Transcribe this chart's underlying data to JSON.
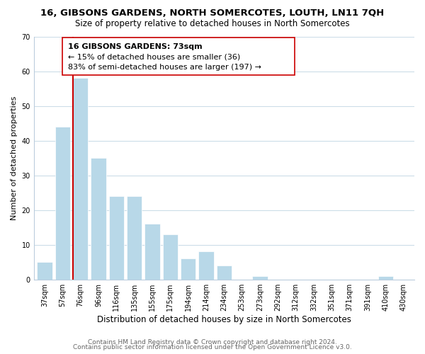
{
  "title": "16, GIBSONS GARDENS, NORTH SOMERCOTES, LOUTH, LN11 7QH",
  "subtitle": "Size of property relative to detached houses in North Somercotes",
  "xlabel": "Distribution of detached houses by size in North Somercotes",
  "ylabel": "Number of detached properties",
  "bar_labels": [
    "37sqm",
    "57sqm",
    "76sqm",
    "96sqm",
    "116sqm",
    "135sqm",
    "155sqm",
    "175sqm",
    "194sqm",
    "214sqm",
    "234sqm",
    "253sqm",
    "273sqm",
    "292sqm",
    "312sqm",
    "332sqm",
    "351sqm",
    "371sqm",
    "391sqm",
    "410sqm",
    "430sqm"
  ],
  "bar_heights": [
    5,
    44,
    58,
    35,
    24,
    24,
    16,
    13,
    6,
    8,
    4,
    0,
    1,
    0,
    0,
    0,
    0,
    0,
    0,
    1,
    0
  ],
  "bar_color": "#b8d8e8",
  "vline_color": "#cc0000",
  "vline_x_index": 2,
  "ylim": [
    0,
    70
  ],
  "yticks": [
    0,
    10,
    20,
    30,
    40,
    50,
    60,
    70
  ],
  "annotation_title": "16 GIBSONS GARDENS: 73sqm",
  "annotation_line1": "← 15% of detached houses are smaller (36)",
  "annotation_line2": "83% of semi-detached houses are larger (197) →",
  "footer_line1": "Contains HM Land Registry data © Crown copyright and database right 2024.",
  "footer_line2": "Contains public sector information licensed under the Open Government Licence v3.0.",
  "background_color": "#ffffff",
  "grid_color": "#ccdde8",
  "title_fontsize": 9.5,
  "subtitle_fontsize": 8.5,
  "xlabel_fontsize": 8.5,
  "ylabel_fontsize": 8,
  "tick_fontsize": 7,
  "footer_fontsize": 6.5,
  "annot_fontsize": 8
}
